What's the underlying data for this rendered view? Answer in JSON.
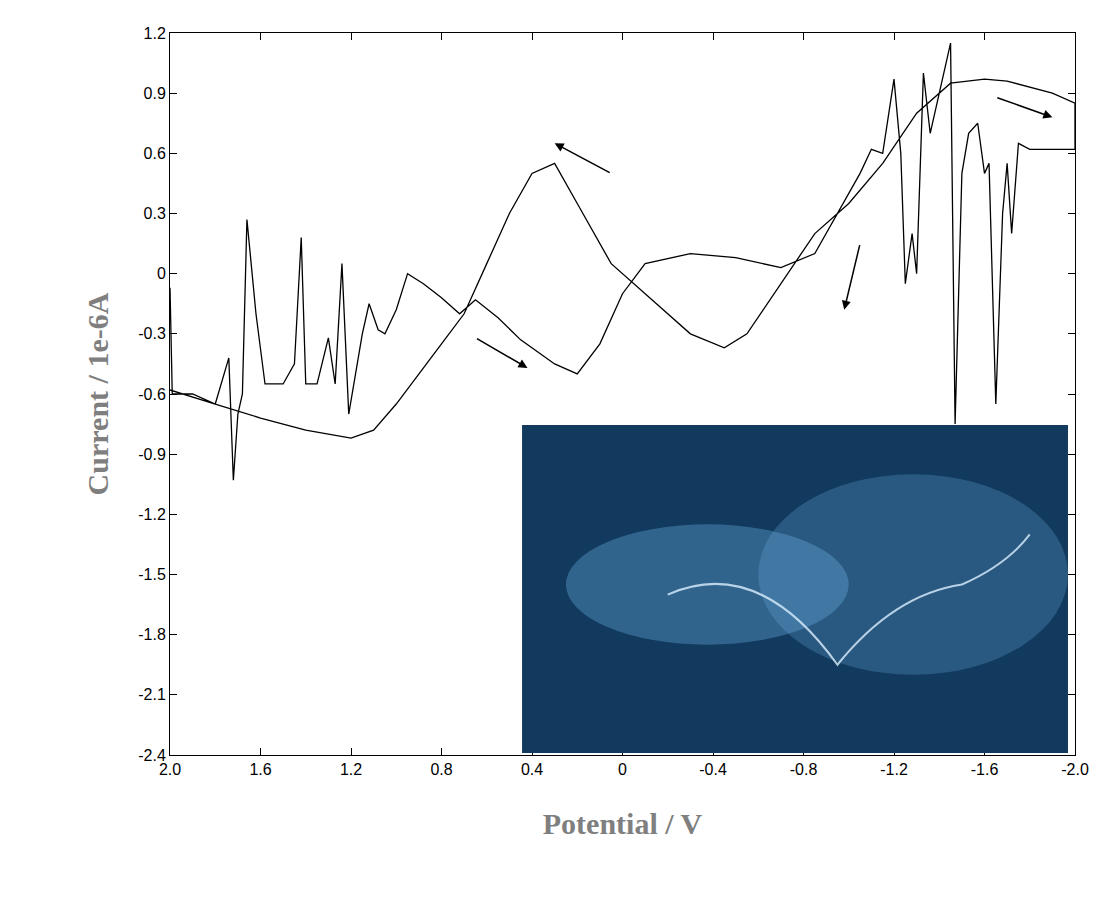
{
  "chart_data": {
    "type": "line",
    "x_label": "Potential / V",
    "y_label": "Current / 1e-6A",
    "color": "#000000",
    "grid": false,
    "x": [
      2.0,
      1.99,
      1.9,
      1.8,
      1.74,
      1.72,
      1.7,
      1.68,
      1.66,
      1.62,
      1.58,
      1.5,
      1.45,
      1.42,
      1.4,
      1.35,
      1.3,
      1.27,
      1.24,
      1.21,
      1.15,
      1.12,
      1.08,
      1.05,
      1.0,
      0.95,
      0.88,
      0.8,
      0.72,
      0.65,
      0.55,
      0.45,
      0.3,
      0.2,
      0.1,
      0.0,
      -0.1,
      -0.3,
      -0.5,
      -0.7,
      -0.85,
      -0.95,
      -1.05,
      -1.1,
      -1.15,
      -1.2,
      -1.23,
      -1.25,
      -1.28,
      -1.3,
      -1.33,
      -1.36,
      -1.4,
      -1.45,
      -1.47,
      -1.5,
      -1.53,
      -1.57,
      -1.6,
      -1.62,
      -1.65,
      -1.68,
      -1.7,
      -1.72,
      -1.75,
      -1.8,
      -1.9,
      -2.0,
      -2.0,
      -1.9,
      -1.7,
      -1.6,
      -1.45,
      -1.3,
      -1.15,
      -1.0,
      -0.85,
      -0.7,
      -0.55,
      -0.45,
      -0.3,
      -0.15,
      0.05,
      0.2,
      0.3,
      0.4,
      0.5,
      0.6,
      0.7,
      0.8,
      0.9,
      1.0,
      1.1,
      1.2,
      1.4,
      1.6,
      1.8,
      2.0
    ],
    "values": [
      -0.07,
      -0.6,
      -0.6,
      -0.65,
      -0.42,
      -1.03,
      -0.7,
      -0.6,
      0.27,
      -0.2,
      -0.55,
      -0.55,
      -0.45,
      0.18,
      -0.55,
      -0.55,
      -0.32,
      -0.55,
      0.05,
      -0.7,
      -0.3,
      -0.15,
      -0.28,
      -0.3,
      -0.18,
      0.0,
      -0.05,
      -0.12,
      -0.2,
      -0.13,
      -0.22,
      -0.33,
      -0.45,
      -0.5,
      -0.35,
      -0.1,
      0.05,
      0.1,
      0.08,
      0.03,
      0.1,
      0.3,
      0.5,
      0.62,
      0.6,
      0.97,
      0.6,
      -0.05,
      0.2,
      0.0,
      1.0,
      0.7,
      0.9,
      1.15,
      -0.75,
      0.5,
      0.7,
      0.75,
      0.5,
      0.55,
      -0.65,
      0.3,
      0.55,
      0.2,
      0.65,
      0.62,
      0.62,
      0.62,
      0.85,
      0.9,
      0.96,
      0.97,
      0.95,
      0.8,
      0.55,
      0.35,
      0.2,
      -0.05,
      -0.3,
      -0.37,
      -0.3,
      -0.15,
      0.05,
      0.35,
      0.55,
      0.5,
      0.3,
      0.05,
      -0.2,
      -0.35,
      -0.5,
      -0.65,
      -0.78,
      -0.82,
      -0.78,
      -0.72,
      -0.65,
      -0.58
    ],
    "xlim": [
      2.0,
      -2.0
    ],
    "xticks": [
      {
        "value": 2.0,
        "label": "2.0"
      },
      1.6,
      1.2,
      0.8,
      0.4,
      0,
      -0.4,
      -0.8,
      -1.2,
      -1.6,
      {
        "value": -2.0,
        "label": "-2.0"
      }
    ],
    "ylim": [
      -2.4,
      1.2
    ],
    "yticks": [
      1.2,
      0.9,
      0.6,
      0.3,
      0,
      -0.3,
      -0.6,
      -0.9,
      -1.2,
      -1.5,
      -1.8,
      -2.1,
      -2.4
    ]
  }
}
